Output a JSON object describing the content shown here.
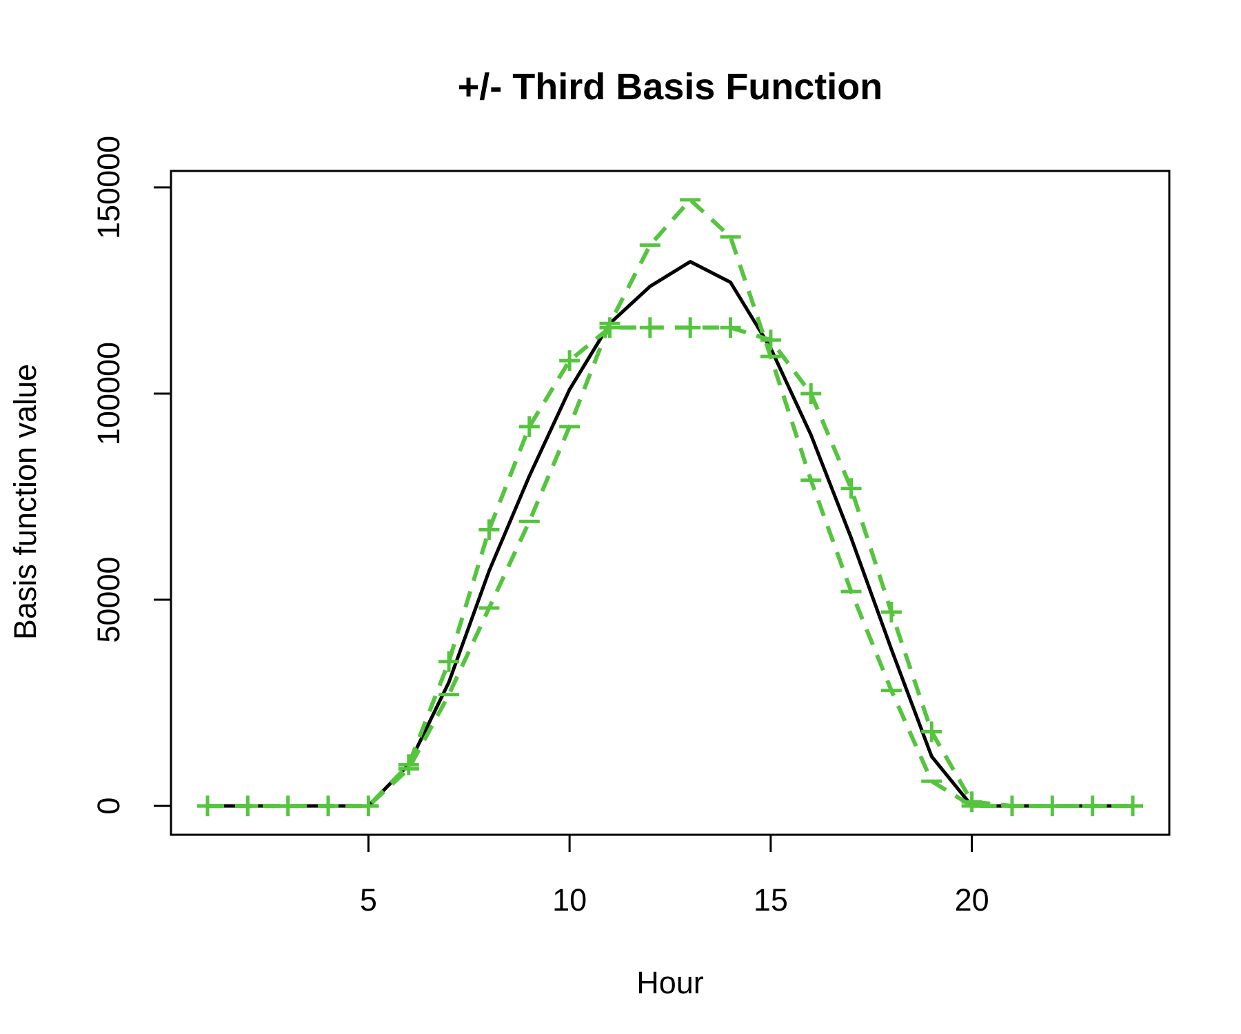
{
  "chart_data": {
    "type": "line",
    "title": "+/- Third Basis Function",
    "xlabel": "Hour",
    "ylabel": "Basis function value",
    "xlim": [
      1,
      24
    ],
    "ylim": [
      -7000,
      154000
    ],
    "x_ticks": [
      5,
      10,
      15,
      20
    ],
    "y_ticks": [
      0,
      50000,
      100000,
      150000
    ],
    "grid": false,
    "legend": "none",
    "x": [
      1,
      2,
      3,
      4,
      5,
      6,
      7,
      8,
      9,
      10,
      11,
      12,
      13,
      14,
      15,
      16,
      17,
      18,
      19,
      20,
      21,
      22,
      23,
      24
    ],
    "series": [
      {
        "color": "#000000",
        "line_style": "solid",
        "marker": "none",
        "values": [
          0,
          0,
          0,
          0,
          0,
          10000,
          30000,
          57000,
          80000,
          101000,
          117000,
          126000,
          132000,
          127000,
          111000,
          90000,
          65000,
          38000,
          12000,
          0,
          0,
          0,
          0,
          0
        ]
      },
      {
        "color": "#55c43e",
        "line_style": "dashed",
        "marker": "+",
        "values": [
          0,
          0,
          0,
          0,
          0,
          10000,
          35000,
          67000,
          92000,
          108000,
          116000,
          116000,
          116000,
          116000,
          113000,
          100000,
          77000,
          47000,
          18000,
          1000,
          0,
          0,
          0,
          0
        ]
      },
      {
        "color": "#55c43e",
        "line_style": "dashed",
        "marker": "-",
        "values": [
          0,
          0,
          0,
          0,
          0,
          9000,
          27000,
          48000,
          69000,
          92000,
          117000,
          136000,
          147000,
          138000,
          109000,
          79000,
          52000,
          28000,
          6000,
          0,
          0,
          0,
          0,
          0
        ]
      }
    ]
  }
}
